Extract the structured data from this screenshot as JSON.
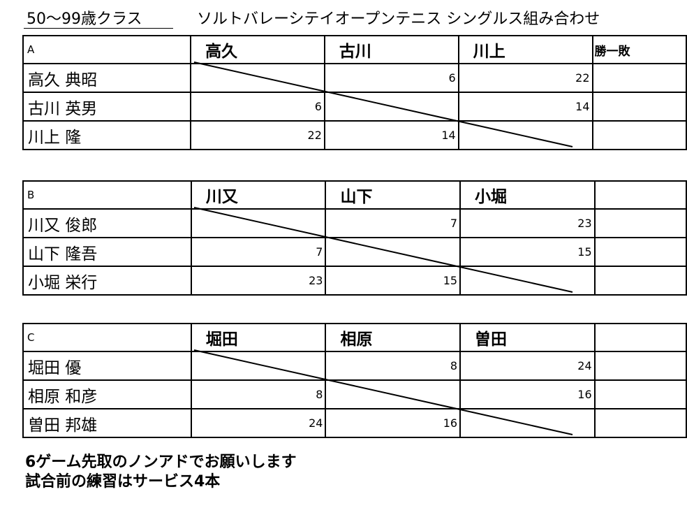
{
  "header": {
    "class_label": "50～99歳クラス",
    "event_title": "ソルトバレーシテイオープンテニス シングルス組み合わせ"
  },
  "groups": [
    {
      "id": "A",
      "opponents": [
        "高久",
        "古川",
        "川上"
      ],
      "record_label": "勝一敗",
      "players": [
        {
          "name": "高久 典昭",
          "scores": [
            "",
            "6",
            "22"
          ]
        },
        {
          "name": "古川 英男",
          "scores": [
            "6",
            "",
            "14"
          ]
        },
        {
          "name": "川上 隆",
          "scores": [
            "22",
            "14",
            ""
          ]
        }
      ]
    },
    {
      "id": "B",
      "opponents": [
        "川又",
        "山下",
        "小堀"
      ],
      "record_label": "",
      "players": [
        {
          "name": "川又 俊郎",
          "scores": [
            "",
            "7",
            "23"
          ]
        },
        {
          "name": "山下 隆吾",
          "scores": [
            "7",
            "",
            "15"
          ]
        },
        {
          "name": "小堀 栄行",
          "scores": [
            "23",
            "15",
            ""
          ]
        }
      ]
    },
    {
      "id": "C",
      "opponents": [
        "堀田",
        "相原",
        "曽田"
      ],
      "record_label": "",
      "players": [
        {
          "name": "堀田 優",
          "scores": [
            "",
            "8",
            "24"
          ]
        },
        {
          "name": "相原 和彦",
          "scores": [
            "8",
            "",
            "16"
          ]
        },
        {
          "name": "曽田 邦雄",
          "scores": [
            "24",
            "16",
            ""
          ]
        }
      ]
    }
  ],
  "notes": [
    "6ゲーム先取のノンアドでお願いします",
    "試合前の練習はサービス4本"
  ]
}
